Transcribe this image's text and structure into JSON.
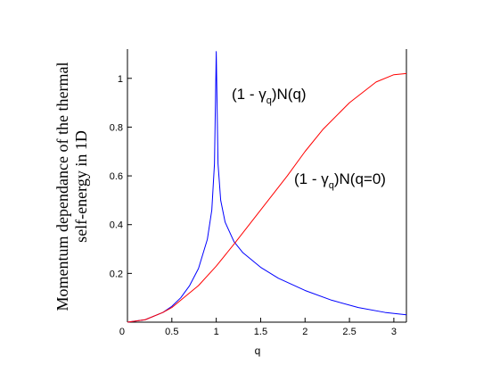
{
  "chart_data": {
    "type": "line",
    "title": "",
    "xlabel": "q",
    "ylabel_lines": [
      "Momentum dependance of the thermal",
      "self-energy in 1D"
    ],
    "xlim": [
      0,
      3.14159
    ],
    "ylim": [
      0,
      1.12
    ],
    "x_ticks": [
      {
        "value": 0,
        "label": "0"
      },
      {
        "value": 0.5,
        "label": "0.5"
      },
      {
        "value": 1,
        "label": "1"
      },
      {
        "value": 1.5,
        "label": "1.5"
      },
      {
        "value": 2,
        "label": "2"
      },
      {
        "value": 2.5,
        "label": "2.5"
      },
      {
        "value": 3,
        "label": "3"
      }
    ],
    "y_ticks": [
      {
        "value": 0.2,
        "label": "0.2"
      },
      {
        "value": 0.4,
        "label": "0.4"
      },
      {
        "value": 0.6,
        "label": "0.6"
      },
      {
        "value": 0.8,
        "label": "0.8"
      },
      {
        "value": 1,
        "label": "1"
      }
    ],
    "grid": false,
    "series": [
      {
        "color": "#0000ff",
        "x": [
          0,
          0.2,
          0.4,
          0.5,
          0.6,
          0.7,
          0.8,
          0.9,
          0.95,
          0.98,
          1.0,
          1.02,
          1.05,
          1.1,
          1.2,
          1.3,
          1.5,
          1.7,
          2.0,
          2.3,
          2.6,
          2.9,
          3.14159
        ],
        "y": [
          0,
          0.01,
          0.04,
          0.065,
          0.1,
          0.15,
          0.22,
          0.34,
          0.46,
          0.65,
          1.11,
          0.65,
          0.5,
          0.41,
          0.33,
          0.285,
          0.225,
          0.18,
          0.13,
          0.09,
          0.06,
          0.04,
          0.03
        ]
      },
      {
        "color": "#ff0000",
        "x": [
          0,
          0.2,
          0.4,
          0.5,
          0.6,
          0.8,
          1.0,
          1.2,
          1.5,
          1.8,
          2.0,
          2.2,
          2.5,
          2.8,
          3.0,
          3.14159
        ],
        "y": [
          0,
          0.01,
          0.04,
          0.06,
          0.09,
          0.15,
          0.23,
          0.32,
          0.46,
          0.6,
          0.7,
          0.79,
          0.9,
          0.985,
          1.015,
          1.02
        ]
      }
    ],
    "annotations": [
      {
        "pre": "(1 - ",
        "symbol": "γ",
        "sub": "q",
        "post": ")N(q)"
      },
      {
        "pre": "(1 - ",
        "symbol": "γ",
        "sub": "q",
        "post": ")N(q=0)"
      }
    ]
  }
}
